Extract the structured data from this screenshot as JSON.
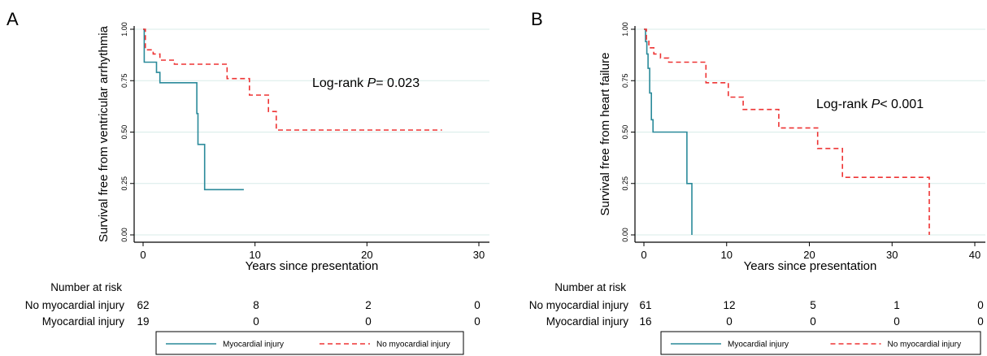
{
  "colors": {
    "myocardial_injury": "#2a8a9a",
    "no_myocardial_injury": "#ee3333",
    "grid": "#d8ece8",
    "axis": "#000000"
  },
  "risk_table_title": "Number at risk",
  "chart_data": [
    {
      "panel": "A",
      "type": "line",
      "subtype": "kaplan-meier",
      "xlabel": "Years since presentation",
      "ylabel": "Survival free from ventricular arrhythmia",
      "xlim": [
        0,
        30
      ],
      "ylim": [
        0,
        1
      ],
      "x_ticks": [
        "0",
        "10",
        "20",
        "30"
      ],
      "y_ticks": [
        "0.00",
        "0.25",
        "0.50",
        "0.75",
        "1.00"
      ],
      "grid": true,
      "annotation": {
        "prefix": "Log-rank ",
        "p": "P",
        "rest": "= 0.023"
      },
      "series": [
        {
          "name": "Myocardial injury",
          "style": "solid",
          "x": [
            0,
            0.1,
            0.1,
            1.2,
            1.2,
            1.5,
            1.5,
            4.8,
            4.8,
            4.9,
            4.9,
            5.5,
            5.5,
            9.0
          ],
          "y": [
            1.0,
            1.0,
            0.84,
            0.84,
            0.79,
            0.79,
            0.74,
            0.74,
            0.59,
            0.59,
            0.44,
            0.44,
            0.22,
            0.22
          ]
        },
        {
          "name": "No myocardial injury",
          "style": "dashed",
          "x": [
            0,
            0.2,
            0.2,
            0.9,
            0.9,
            1.5,
            1.5,
            2.8,
            2.8,
            7.5,
            7.5,
            9.5,
            9.5,
            11.2,
            11.2,
            11.9,
            11.9,
            26.7
          ],
          "y": [
            1.0,
            1.0,
            0.9,
            0.9,
            0.88,
            0.88,
            0.85,
            0.85,
            0.83,
            0.83,
            0.76,
            0.76,
            0.68,
            0.68,
            0.6,
            0.6,
            0.51,
            0.51
          ]
        }
      ],
      "risk_table": {
        "rows": [
          {
            "label": "No myocardial injury",
            "values": [
              "62",
              "8",
              "2",
              "0"
            ]
          },
          {
            "label": "Myocardial injury",
            "values": [
              "19",
              "0",
              "0",
              "0"
            ]
          }
        ]
      },
      "legend": [
        {
          "label": "Myocardial injury",
          "style": "solid"
        },
        {
          "label": "No myocardial injury",
          "style": "dashed"
        }
      ]
    },
    {
      "panel": "B",
      "type": "line",
      "subtype": "kaplan-meier",
      "xlabel": "Years since presentation",
      "ylabel": "Survival free from heart failure",
      "xlim": [
        0,
        40
      ],
      "ylim": [
        0,
        1
      ],
      "x_ticks": [
        "0",
        "10",
        "20",
        "30",
        "40"
      ],
      "y_ticks": [
        "0.00",
        "0.25",
        "0.50",
        "0.75",
        "1.00"
      ],
      "grid": true,
      "annotation": {
        "prefix": "Log-rank ",
        "p": "P",
        "rest": "< 0.001"
      },
      "series": [
        {
          "name": "Myocardial injury",
          "style": "solid",
          "x": [
            0,
            0.2,
            0.2,
            0.35,
            0.35,
            0.5,
            0.5,
            0.7,
            0.7,
            0.9,
            0.9,
            1.1,
            1.1,
            5.2,
            5.2,
            5.8,
            5.8
          ],
          "y": [
            1.0,
            1.0,
            0.94,
            0.94,
            0.88,
            0.88,
            0.81,
            0.81,
            0.69,
            0.69,
            0.56,
            0.56,
            0.5,
            0.5,
            0.25,
            0.25,
            0.0
          ]
        },
        {
          "name": "No myocardial injury",
          "style": "dashed",
          "x": [
            0,
            0.3,
            0.3,
            0.6,
            0.6,
            1.2,
            1.2,
            2.0,
            2.0,
            3.0,
            3.0,
            7.5,
            7.5,
            10.2,
            10.2,
            12.0,
            12.0,
            16.3,
            16.3,
            21.0,
            21.0,
            24.0,
            24.0,
            34.5,
            34.5
          ],
          "y": [
            1.0,
            1.0,
            0.95,
            0.95,
            0.91,
            0.91,
            0.88,
            0.88,
            0.86,
            0.86,
            0.84,
            0.84,
            0.74,
            0.74,
            0.67,
            0.67,
            0.61,
            0.61,
            0.52,
            0.52,
            0.42,
            0.42,
            0.28,
            0.28,
            0.0
          ]
        }
      ],
      "risk_table": {
        "rows": [
          {
            "label": "No myocardial injury",
            "values": [
              "61",
              "12",
              "5",
              "1",
              "0"
            ]
          },
          {
            "label": "Myocardial injury",
            "values": [
              "16",
              "0",
              "0",
              "0",
              "0"
            ]
          }
        ]
      },
      "legend": [
        {
          "label": "Myocardial injury",
          "style": "solid"
        },
        {
          "label": "No myocardial injury",
          "style": "dashed"
        }
      ]
    }
  ]
}
